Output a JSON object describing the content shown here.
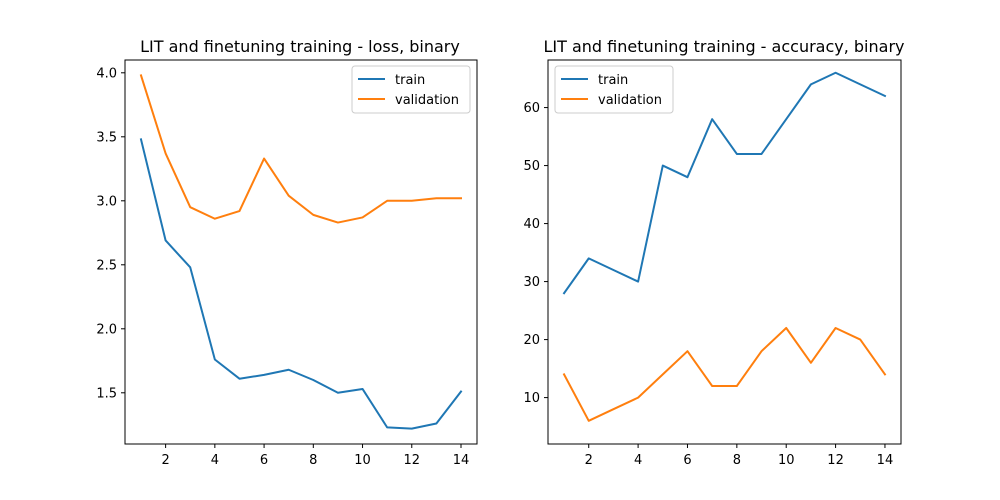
{
  "colors": {
    "train": "#1f77b4",
    "validation": "#ff7f0e"
  },
  "chart_data": [
    {
      "type": "line",
      "title": "LIT and finetuning training - loss, binary",
      "xlabel": "",
      "ylabel": "",
      "x": [
        1,
        2,
        3,
        4,
        5,
        6,
        7,
        8,
        9,
        10,
        11,
        12,
        13,
        14
      ],
      "xlim": [
        0.35,
        14.65
      ],
      "ylim": [
        1.1,
        4.1
      ],
      "xticks": [
        2,
        4,
        6,
        8,
        10,
        12,
        14
      ],
      "yticks": [
        1.5,
        2.0,
        2.5,
        3.0,
        3.5,
        4.0
      ],
      "ytick_labels": [
        "1.5",
        "2.0",
        "2.5",
        "3.0",
        "3.5",
        "4.0"
      ],
      "legend_position": "top-right",
      "grid": false,
      "series": [
        {
          "name": "train",
          "values": [
            3.48,
            2.69,
            2.48,
            1.76,
            1.61,
            1.64,
            1.68,
            1.6,
            1.5,
            1.53,
            1.23,
            1.22,
            1.26,
            1.51
          ]
        },
        {
          "name": "validation",
          "values": [
            3.98,
            3.37,
            2.95,
            2.86,
            2.92,
            3.33,
            3.04,
            2.89,
            2.83,
            2.87,
            3.0,
            3.0,
            3.02,
            3.02
          ]
        }
      ]
    },
    {
      "type": "line",
      "title": "LIT and finetuning training - accuracy, binary",
      "xlabel": "",
      "ylabel": "",
      "x": [
        1,
        2,
        3,
        4,
        5,
        6,
        7,
        8,
        9,
        10,
        11,
        12,
        13,
        14
      ],
      "xlim": [
        0.35,
        14.65
      ],
      "ylim": [
        2.0,
        68.2
      ],
      "xticks": [
        2,
        4,
        6,
        8,
        10,
        12,
        14
      ],
      "yticks": [
        10,
        20,
        30,
        40,
        50,
        60
      ],
      "ytick_labels": [
        "10",
        "20",
        "30",
        "40",
        "50",
        "60"
      ],
      "legend_position": "top-left",
      "grid": false,
      "series": [
        {
          "name": "train",
          "values": [
            28,
            34,
            32,
            30,
            50,
            48,
            58,
            52,
            52,
            58,
            64,
            66,
            64,
            62
          ]
        },
        {
          "name": "validation",
          "values": [
            14,
            6,
            8,
            10,
            14,
            18,
            12,
            12,
            18,
            22,
            16,
            22,
            20,
            14
          ]
        }
      ]
    }
  ]
}
